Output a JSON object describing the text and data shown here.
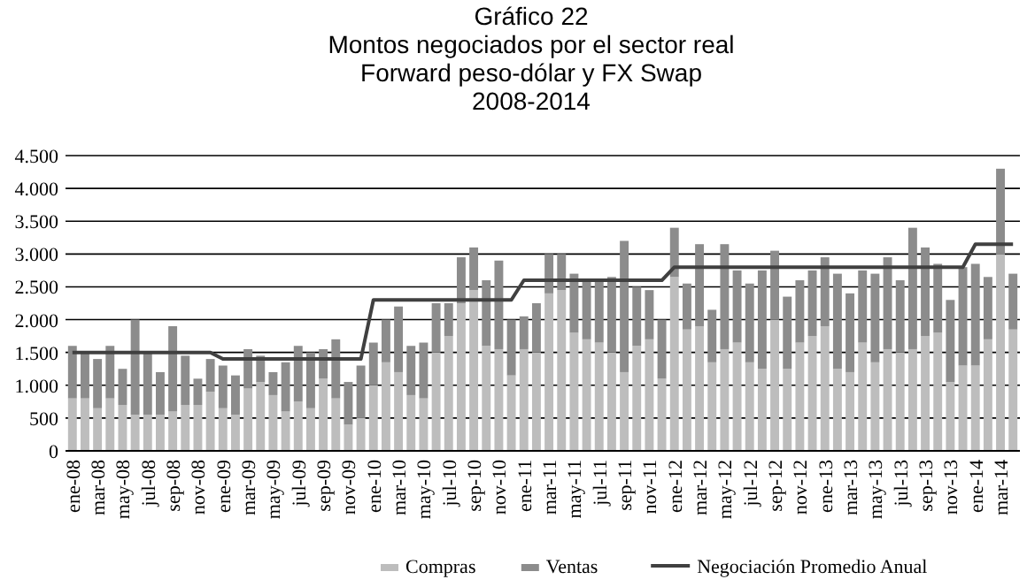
{
  "chart_data": {
    "type": "bar",
    "title": "Gráfico 22\nMontos negociados por el sector real",
    "subtitle": "Forward peso-dólar y FX Swap\n2008-2014",
    "categories": [
      "ene-08",
      null,
      "mar-08",
      null,
      "may-08",
      null,
      "jul-08",
      null,
      "sep-08",
      null,
      "nov-08",
      null,
      "ene-09",
      null,
      "mar-09",
      null,
      "may-09",
      null,
      "jul-09",
      null,
      "sep-09",
      null,
      "nov-09",
      null,
      "ene-10",
      null,
      "mar-10",
      null,
      "may-10",
      null,
      "jul-10",
      null,
      "sep-10",
      null,
      "nov-10",
      null,
      "ene-11",
      null,
      "mar-11",
      null,
      "may-11",
      null,
      "jul-11",
      null,
      "sep-11",
      null,
      "nov-11",
      null,
      "ene-12",
      null,
      "mar-12",
      null,
      "may-12",
      null,
      "jul-12",
      null,
      "sep-12",
      null,
      "nov-12",
      null,
      "ene-13",
      null,
      "mar-13",
      null,
      "may-13",
      null,
      "jul-13",
      null,
      "sep-13",
      null,
      "nov-13",
      null,
      "ene-14",
      null,
      "mar-14",
      null
    ],
    "stacked": true,
    "series": [
      {
        "name": "Compras",
        "color": "#bdbdbd",
        "values": [
          800,
          800,
          650,
          800,
          700,
          550,
          550,
          550,
          600,
          700,
          700,
          900,
          650,
          550,
          950,
          1050,
          850,
          600,
          750,
          650,
          1100,
          800,
          400,
          500,
          1000,
          1350,
          1200,
          850,
          800,
          1500,
          1750,
          2250,
          2450,
          1600,
          1550,
          1150,
          1550,
          1500,
          2400,
          2450,
          1800,
          1700,
          1650,
          1500,
          1200,
          1600,
          1700,
          1100,
          2650,
          1850,
          1900,
          1350,
          1550,
          1650,
          1350,
          1250,
          2000,
          1250,
          1650,
          1750,
          1900,
          1250,
          1200,
          1650,
          1350,
          1550,
          1500,
          1550,
          1750,
          1800,
          1050,
          1300,
          1300,
          1700,
          3000,
          1850
        ]
      },
      {
        "name": "Ventas",
        "color": "#8c8c8c",
        "values": [
          800,
          700,
          750,
          800,
          550,
          1450,
          950,
          650,
          1300,
          750,
          400,
          500,
          650,
          600,
          600,
          400,
          350,
          750,
          850,
          850,
          450,
          900,
          650,
          800,
          650,
          650,
          1000,
          750,
          850,
          750,
          500,
          700,
          650,
          1000,
          1350,
          850,
          500,
          750,
          600,
          550,
          900,
          900,
          950,
          1150,
          2000,
          900,
          750,
          900,
          750,
          700,
          1250,
          800,
          1600,
          1100,
          1200,
          1500,
          1050,
          1100,
          950,
          1000,
          1050,
          1450,
          1200,
          1100,
          1350,
          1400,
          1100,
          1850,
          1350,
          1050,
          1250,
          1500,
          1550,
          950,
          1300,
          850
        ]
      },
      {
        "name": "Negociación Promedio Anual",
        "type": "line",
        "color": "#404040",
        "values": [
          1500,
          1500,
          1500,
          1500,
          1500,
          1500,
          1500,
          1500,
          1500,
          1500,
          1500,
          1500,
          1400,
          1400,
          1400,
          1400,
          1400,
          1400,
          1400,
          1400,
          1400,
          1400,
          1400,
          1400,
          2300,
          2300,
          2300,
          2300,
          2300,
          2300,
          2300,
          2300,
          2300,
          2300,
          2300,
          2300,
          2600,
          2600,
          2600,
          2600,
          2600,
          2600,
          2600,
          2600,
          2600,
          2600,
          2600,
          2600,
          2800,
          2800,
          2800,
          2800,
          2800,
          2800,
          2800,
          2800,
          2800,
          2800,
          2800,
          2800,
          2800,
          2800,
          2800,
          2800,
          2800,
          2800,
          2800,
          2800,
          2800,
          2800,
          2800,
          2800,
          3150,
          3150,
          3150,
          3150
        ]
      }
    ],
    "ylim": [
      0,
      4500
    ],
    "yticks": [
      0,
      500,
      {
        "value": 1000,
        "label": "1.000"
      },
      {
        "value": 1500,
        "label": "1.500"
      },
      {
        "value": 2000,
        "label": "2.000"
      },
      {
        "value": 2500,
        "label": "2.500"
      },
      {
        "value": 3000,
        "label": "3.000"
      },
      {
        "value": 3500,
        "label": "3.500"
      },
      {
        "value": 4000,
        "label": "4.000"
      },
      {
        "value": 4500,
        "label": "4.500"
      }
    ],
    "grid": "y",
    "legend": "bottom"
  }
}
